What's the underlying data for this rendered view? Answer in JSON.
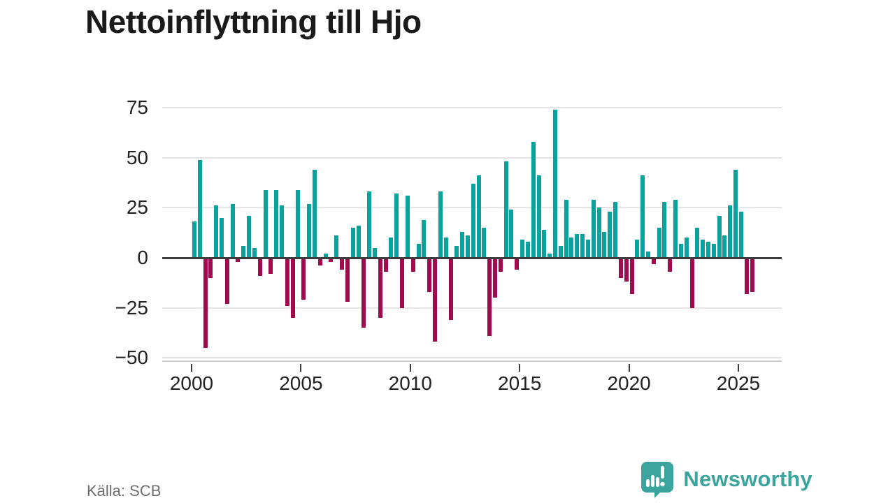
{
  "title": "Nettoinflyttning till Hjo",
  "source": "Källa: SCB",
  "branding": {
    "name": "Newsworthy",
    "icon": "newsworthy-speech-bubble-chart-icon"
  },
  "colors": {
    "positive": "#0aa29d",
    "negative": "#a30a4d",
    "brand": "#3aa49d",
    "grid": "#e4e4e4",
    "zero_line": "#3d3d3d",
    "axis_line": "#cccccc",
    "tick": "#3d3d3d",
    "title_text": "#1a1a1a",
    "axis_text": "#222222",
    "source_text": "#6e6e6e"
  },
  "chart_data": {
    "type": "bar",
    "title": "Nettoinflyttning till Hjo",
    "x_unit": "quarter",
    "start_period": "2000-Q1",
    "end_period": "2025-Q3",
    "ylim": [
      -50,
      75
    ],
    "grid": true,
    "yticks": [
      {
        "v": 75,
        "label": "75"
      },
      {
        "v": 50,
        "label": "50"
      },
      {
        "v": 25,
        "label": "25"
      },
      {
        "v": 0,
        "label": "0"
      },
      {
        "v": -25,
        "label": "−25"
      },
      {
        "v": -50,
        "label": "−50"
      }
    ],
    "xticks": [
      {
        "year": 2000,
        "label": "2000"
      },
      {
        "year": 2005,
        "label": "2005"
      },
      {
        "year": 2010,
        "label": "2010"
      },
      {
        "year": 2015,
        "label": "2015"
      },
      {
        "year": 2020,
        "label": "2020"
      },
      {
        "year": 2025,
        "label": "2025"
      }
    ],
    "values": [
      18,
      49,
      -45,
      -10,
      26,
      20,
      -23,
      27,
      -2,
      6,
      21,
      5,
      -9,
      34,
      -8,
      34,
      26,
      -24,
      -30,
      34,
      -21,
      27,
      44,
      -4,
      2,
      -2,
      11,
      -6,
      -22,
      15,
      16,
      -35,
      33,
      5,
      -30,
      -7,
      10,
      32,
      -25,
      31,
      -7,
      7,
      19,
      -17,
      -42,
      33,
      10,
      -31,
      6,
      13,
      11,
      37,
      41,
      15,
      -39,
      -20,
      -7,
      48,
      24,
      -6,
      9,
      8,
      58,
      41,
      14,
      2,
      74,
      6,
      29,
      10,
      12,
      12,
      9,
      29,
      25,
      13,
      23,
      28,
      -10,
      -12,
      -18,
      9,
      41,
      3,
      -3,
      15,
      28,
      -7,
      29,
      7,
      10,
      -25,
      15,
      9,
      8,
      7,
      21,
      11,
      26,
      44,
      23,
      -18,
      -17
    ]
  }
}
